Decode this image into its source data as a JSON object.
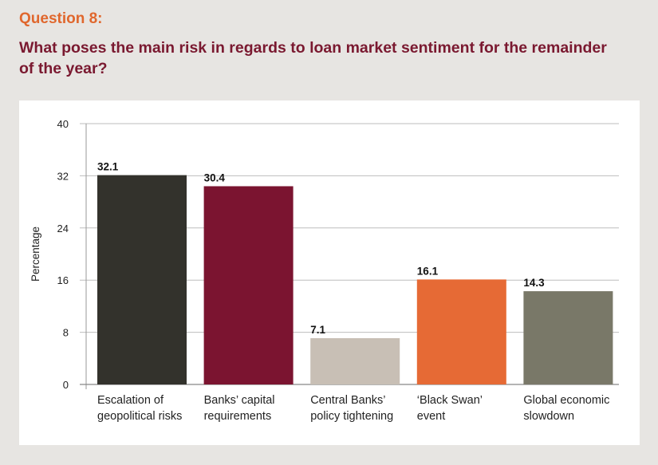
{
  "header": {
    "question_label": "Question 8:",
    "question_text": "What poses the main risk in regards to loan market sentiment for the remainder of the year?"
  },
  "chart_data": {
    "type": "bar",
    "title": "What poses the main risk in regards to loan market sentiment for the remainder of the year?",
    "ylabel": "Percentage",
    "xlabel": "",
    "ylim": [
      0,
      40
    ],
    "yticks": [
      0,
      8,
      16,
      24,
      32,
      40
    ],
    "grid": true,
    "categories": [
      [
        "Escalation of",
        "geopolitical risks"
      ],
      [
        "Banks’ capital",
        "requirements"
      ],
      [
        "Central Banks’",
        "policy tightening"
      ],
      [
        "‘Black Swan’",
        "event"
      ],
      [
        "Global economic",
        "slowdown"
      ]
    ],
    "values": [
      32.1,
      30.4,
      7.1,
      16.1,
      14.3
    ],
    "colors": [
      "#33322c",
      "#7b1430",
      "#c8bfb5",
      "#e66a35",
      "#797868"
    ]
  }
}
